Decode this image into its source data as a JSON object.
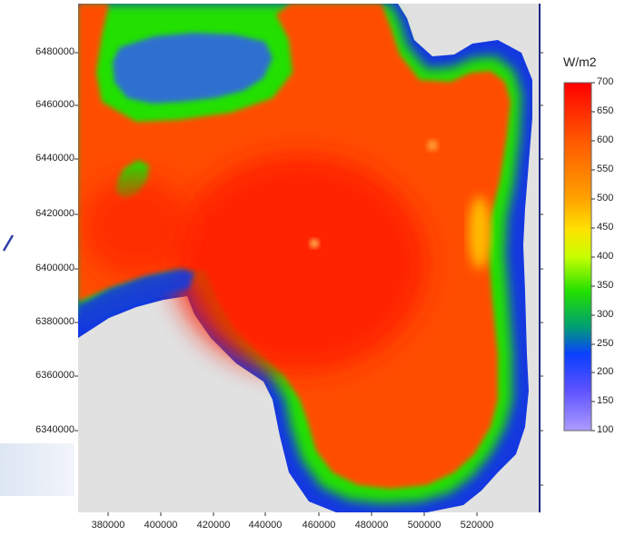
{
  "map": {
    "unit_label": "W/m2",
    "y_ticks": [
      "6480000",
      "6460000",
      "6440000",
      "6420000",
      "6400000",
      "6380000",
      "6360000",
      "6340000"
    ],
    "x_ticks": [
      "380000",
      "400000",
      "420000",
      "440000",
      "460000",
      "480000",
      "500000",
      "520000"
    ],
    "colorbar_ticks": [
      "700",
      "650",
      "600",
      "550",
      "500",
      "450",
      "400",
      "350",
      "300",
      "250",
      "200",
      "150",
      "100"
    ],
    "colors": {
      "high": "#ff1a00",
      "mid_high": "#ff5500",
      "mid": "#ffd800",
      "mid_low": "#22e000",
      "low": "#1438e0",
      "min": "#9d8cff",
      "no_data": "#e1e1e1",
      "frame": "#1b2a86"
    }
  }
}
